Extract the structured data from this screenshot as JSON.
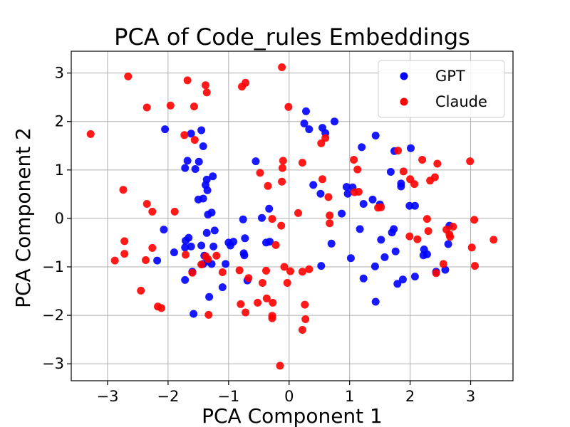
{
  "chart_data": {
    "type": "scatter",
    "title": "PCA of Code_rules Embeddings",
    "xlabel": "PCA Component 1",
    "ylabel": "PCA Component 2",
    "xlim": [
      -3.6,
      3.7
    ],
    "ylim": [
      -3.35,
      3.45
    ],
    "xticks": [
      -3,
      -2,
      -1,
      0,
      1,
      2,
      3
    ],
    "yticks": [
      -3,
      -2,
      -1,
      0,
      1,
      2,
      3
    ],
    "grid": true,
    "legend_position": "top-right",
    "series": [
      {
        "name": "GPT",
        "color": "#0000ff",
        "points": [
          [
            -2.05,
            1.84
          ],
          [
            -1.62,
            1.75
          ],
          [
            -1.45,
            1.82
          ],
          [
            -1.42,
            1.49
          ],
          [
            -1.68,
            1.19
          ],
          [
            -1.72,
            1.04
          ],
          [
            -1.55,
            1.02
          ],
          [
            -1.49,
            1.17
          ],
          [
            -1.36,
            0.8
          ],
          [
            -1.38,
            0.69
          ],
          [
            -1.35,
            0.58
          ],
          [
            -1.26,
            0.87
          ],
          [
            -1.5,
            0.39
          ],
          [
            -1.42,
            0.41
          ],
          [
            -1.28,
            0.12
          ],
          [
            -1.34,
            0.08
          ],
          [
            -2.07,
            -0.23
          ],
          [
            -1.66,
            -0.4
          ],
          [
            -1.71,
            -0.46
          ],
          [
            -1.72,
            -0.6
          ],
          [
            -1.62,
            -0.58
          ],
          [
            -1.9,
            -0.7
          ],
          [
            -2.18,
            -0.87
          ],
          [
            -1.45,
            -0.56
          ],
          [
            -1.36,
            -0.3
          ],
          [
            -1.23,
            -0.25
          ],
          [
            -1.25,
            -0.58
          ],
          [
            -1.4,
            -0.77
          ],
          [
            -1.35,
            -0.89
          ],
          [
            -1.42,
            -0.94
          ],
          [
            -1.28,
            -0.94
          ],
          [
            -1.6,
            -1.1
          ],
          [
            -1.72,
            -1.27
          ],
          [
            -1.32,
            -1.62
          ],
          [
            -1.58,
            -1.97
          ],
          [
            -1.0,
            -0.5
          ],
          [
            -0.97,
            -0.56
          ],
          [
            -0.92,
            -0.48
          ],
          [
            -0.75,
            -0.72
          ],
          [
            -0.74,
            -0.76
          ],
          [
            -0.73,
            -0.41
          ],
          [
            -0.76,
            -0.02
          ],
          [
            -0.55,
            1.18
          ],
          [
            -0.45,
            0.01
          ],
          [
            -0.33,
            0.2
          ],
          [
            -0.32,
            -0.48
          ],
          [
            -0.38,
            -0.5
          ],
          [
            -0.69,
            -1.28
          ],
          [
            -1.1,
            -1.42
          ],
          [
            -1.05,
            -0.94
          ],
          [
            0.25,
            1.96
          ],
          [
            0.28,
            2.21
          ],
          [
            0.33,
            1.84
          ],
          [
            0.55,
            1.87
          ],
          [
            0.6,
            1.76
          ],
          [
            0.75,
            2.0
          ],
          [
            0.4,
            0.69
          ],
          [
            0.52,
            0.51
          ],
          [
            0.95,
            0.65
          ],
          [
            0.97,
            0.51
          ],
          [
            1.05,
            0.64
          ],
          [
            1.2,
            1.47
          ],
          [
            1.43,
            1.71
          ],
          [
            1.5,
            0.29
          ],
          [
            1.68,
            0.96
          ],
          [
            1.85,
            0.72
          ],
          [
            1.85,
            0.66
          ],
          [
            1.99,
            0.26
          ],
          [
            2.01,
            1.45
          ],
          [
            2.08,
            0.26
          ],
          [
            1.74,
            1.39
          ],
          [
            1.52,
            -0.44
          ],
          [
            1.38,
            0.39
          ],
          [
            1.17,
            -0.22
          ],
          [
            1.02,
            -0.82
          ],
          [
            0.87,
            0.1
          ],
          [
            0.7,
            -0.52
          ],
          [
            0.53,
            -0.98
          ],
          [
            1.23,
            -1.24
          ],
          [
            1.43,
            -1.72
          ],
          [
            1.42,
            -0.99
          ],
          [
            1.58,
            -0.8
          ],
          [
            1.7,
            -0.29
          ],
          [
            1.73,
            -0.22
          ],
          [
            1.76,
            -0.68
          ],
          [
            1.79,
            -1.35
          ],
          [
            1.88,
            -1.26
          ],
          [
            2.08,
            -1.2
          ],
          [
            2.23,
            -0.64
          ],
          [
            2.22,
            -0.76
          ],
          [
            2.28,
            -0.74
          ],
          [
            2.43,
            -1.1
          ],
          [
            2.58,
            -1.06
          ],
          [
            2.63,
            -0.53
          ],
          [
            2.65,
            -0.15
          ],
          [
            1.23,
            0.3
          ]
        ]
      },
      {
        "name": "Claude",
        "color": "#ff0000",
        "points": [
          [
            -3.28,
            1.74
          ],
          [
            -2.66,
            2.93
          ],
          [
            -2.35,
            2.29
          ],
          [
            -1.96,
            2.33
          ],
          [
            -1.68,
            2.85
          ],
          [
            -1.57,
            2.31
          ],
          [
            -1.38,
            2.75
          ],
          [
            -1.36,
            2.6
          ],
          [
            -0.78,
            2.72
          ],
          [
            -0.72,
            2.8
          ],
          [
            -0.12,
            3.12
          ],
          [
            -0.01,
            2.3
          ],
          [
            -1.73,
            1.72
          ],
          [
            -1.56,
            1.62
          ],
          [
            -2.74,
            0.59
          ],
          [
            -2.35,
            0.3
          ],
          [
            -2.26,
            0.14
          ],
          [
            -1.89,
            0.14
          ],
          [
            -2.72,
            -0.47
          ],
          [
            -2.72,
            -0.73
          ],
          [
            -2.88,
            -0.87
          ],
          [
            -2.37,
            -0.86
          ],
          [
            -2.26,
            -0.61
          ],
          [
            -2.17,
            -1.82
          ],
          [
            -2.11,
            -1.85
          ],
          [
            -2.45,
            -1.49
          ],
          [
            -1.71,
            -0.75
          ],
          [
            -1.6,
            -1.12
          ],
          [
            -1.45,
            -0.95
          ],
          [
            -1.38,
            -0.78
          ],
          [
            -1.34,
            -0.84
          ],
          [
            -1.33,
            -1.99
          ],
          [
            -1.2,
            -0.77
          ],
          [
            -1.1,
            -1.11
          ],
          [
            -0.82,
            -1.07
          ],
          [
            -0.67,
            -1.23
          ],
          [
            -0.8,
            -1.77
          ],
          [
            -0.72,
            -1.94
          ],
          [
            -0.52,
            -1.74
          ],
          [
            -0.44,
            -1.33
          ],
          [
            -0.38,
            -1.08
          ],
          [
            -0.37,
            -1.65
          ],
          [
            -0.27,
            -1.74
          ],
          [
            -0.28,
            -2.01
          ],
          [
            -0.28,
            -2.06
          ],
          [
            -0.15,
            -3.04
          ],
          [
            -0.22,
            -0.55
          ],
          [
            -0.28,
            -0.01
          ],
          [
            -0.35,
            0.67
          ],
          [
            -0.48,
            0.94
          ],
          [
            -0.1,
            1.19
          ],
          [
            -0.11,
            1.04
          ],
          [
            -0.12,
            0.76
          ],
          [
            -0.13,
            -0.15
          ],
          [
            -0.08,
            -1.0
          ],
          [
            0.02,
            -1.09
          ],
          [
            -0.03,
            -1.33
          ],
          [
            0.15,
            0.11
          ],
          [
            0.22,
            1.15
          ],
          [
            0.22,
            -1.1
          ],
          [
            0.26,
            -1.78
          ],
          [
            0.27,
            -2.08
          ],
          [
            0.22,
            -2.3
          ],
          [
            0.33,
            -1.05
          ],
          [
            0.53,
            1.55
          ],
          [
            0.6,
            1.66
          ],
          [
            0.55,
            0.81
          ],
          [
            0.65,
            0.44
          ],
          [
            0.67,
            -0.1
          ],
          [
            0.67,
            0.06
          ],
          [
            1.07,
            1.21
          ],
          [
            1.13,
            1.01
          ],
          [
            1.08,
            0.54
          ],
          [
            1.15,
            0.55
          ],
          [
            1.47,
            0.22
          ],
          [
            1.52,
            0.23
          ],
          [
            1.8,
            1.4
          ],
          [
            1.89,
            0.97
          ],
          [
            2.0,
            0.81
          ],
          [
            2.07,
            0.71
          ],
          [
            1.99,
            -0.37
          ],
          [
            2.12,
            -0.43
          ],
          [
            2.2,
            1.21
          ],
          [
            2.28,
            -0.01
          ],
          [
            2.3,
            -0.26
          ],
          [
            2.33,
            0.78
          ],
          [
            2.41,
            0.85
          ],
          [
            2.45,
            1.13
          ],
          [
            2.43,
            -1.13
          ],
          [
            2.55,
            -0.94
          ],
          [
            2.6,
            -0.23
          ],
          [
            2.65,
            -0.33
          ],
          [
            2.66,
            -0.38
          ],
          [
            2.71,
            -0.17
          ],
          [
            2.99,
            1.18
          ],
          [
            3.02,
            -0.6
          ],
          [
            3.07,
            -0.98
          ],
          [
            3.06,
            -0.03
          ],
          [
            3.38,
            -0.44
          ]
        ]
      }
    ]
  }
}
